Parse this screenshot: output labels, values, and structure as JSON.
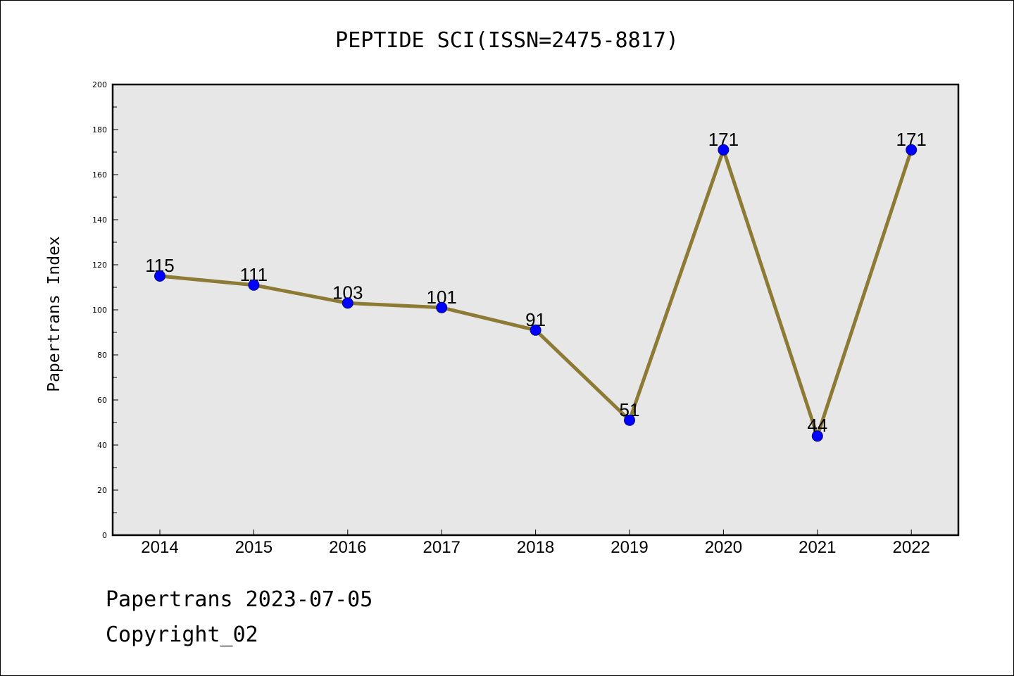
{
  "chart_data": {
    "type": "line",
    "title": "PEPTIDE SCI(ISSN=2475-8817)",
    "xlabel": "",
    "ylabel": "Papertrans Index",
    "categories": [
      "2014",
      "2015",
      "2016",
      "2017",
      "2018",
      "2019",
      "2020",
      "2021",
      "2022"
    ],
    "values": [
      115,
      111,
      103,
      101,
      91,
      51,
      171,
      44,
      171
    ],
    "data_labels": [
      "115",
      "111",
      "103",
      "101",
      "91",
      "51",
      "171",
      "44",
      "171"
    ],
    "ylim": [
      0,
      200
    ],
    "yticks": [
      "0",
      "20",
      "40",
      "60",
      "80",
      "100",
      "120",
      "140",
      "160",
      "180",
      "200"
    ],
    "grid": false,
    "legend": "none",
    "colors": {
      "line": "#8c7a35",
      "marker_fill": "#0000ff",
      "marker_edge": "#0a0a7a",
      "plot_background": "#e7e7e7"
    }
  },
  "footer": {
    "line1": "Papertrans 2023-07-05",
    "line2": "Copyright_02"
  }
}
